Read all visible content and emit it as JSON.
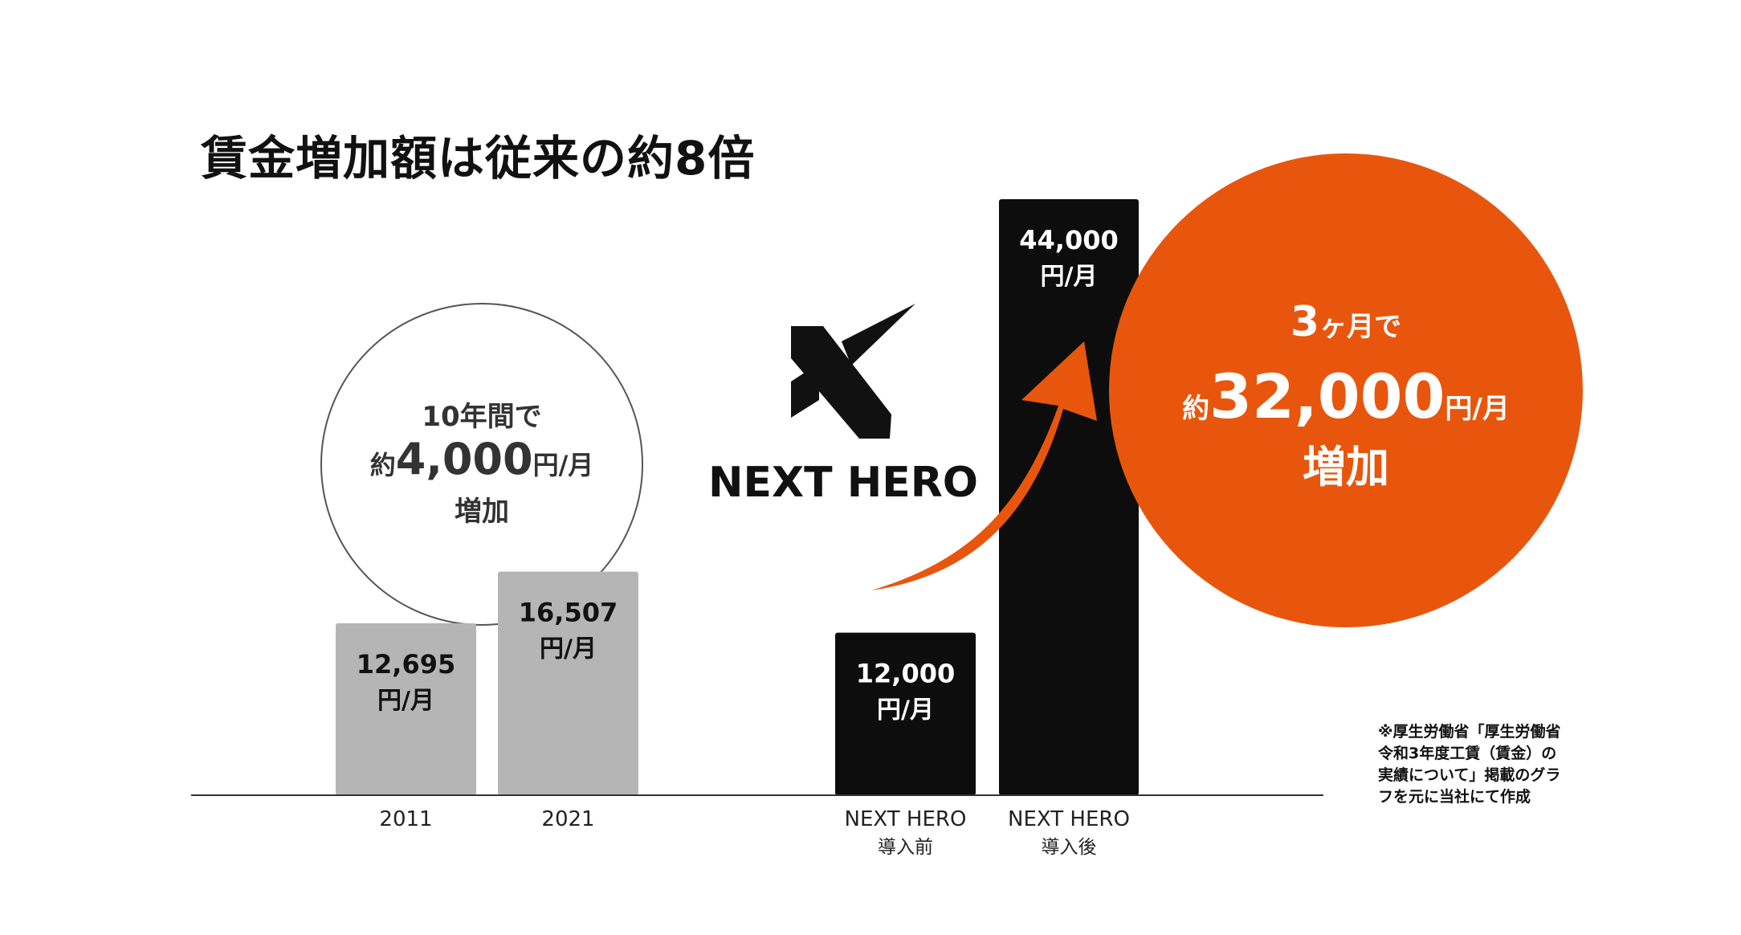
{
  "title": "賃金増加額は従来の約8倍",
  "logo": {
    "name": "NEXT HERO",
    "icon": "x-mark-logo-icon"
  },
  "colors": {
    "gray_bar": "#b5b5b5",
    "black_bar": "#0d0d0d",
    "accent_orange": "#e8560d",
    "axis": "#333333"
  },
  "callouts": {
    "left": {
      "line1": "10年間で",
      "prefix": "約",
      "amount": "4,000",
      "unit": "円/月",
      "line3": "増加"
    },
    "right": {
      "line1_num": "3",
      "line1_rest": "ヶ月で",
      "prefix": "約",
      "amount": "32,000",
      "unit": "円/月",
      "line3": "増加"
    }
  },
  "note": {
    "lines": [
      "※厚生労働省「厚生労働省",
      "令和3年度工賃（賃金）の",
      "実績について」掲載のグラ",
      "フを元に当社にて作成"
    ]
  },
  "chart_data": {
    "type": "bar",
    "title": "賃金増加額は従来の約8倍",
    "categories": [
      [
        "2011"
      ],
      [
        "2021"
      ],
      [
        "NEXT HERO",
        "導入前"
      ],
      [
        "NEXT HERO",
        "導入後"
      ]
    ],
    "values": [
      12695,
      16507,
      12000,
      44000
    ],
    "value_labels": [
      "12,695",
      "16,507",
      "12,000",
      "44,000"
    ],
    "unit_label": "円/月",
    "bar_colors": [
      "#b5b5b5",
      "#b5b5b5",
      "#0d0d0d",
      "#0d0d0d"
    ],
    "label_colors": [
      "#111111",
      "#111111",
      "#ffffff",
      "#ffffff"
    ],
    "ylim": [
      0,
      44000
    ],
    "grid": false,
    "legend": "none",
    "xlabel": "",
    "ylabel": ""
  }
}
